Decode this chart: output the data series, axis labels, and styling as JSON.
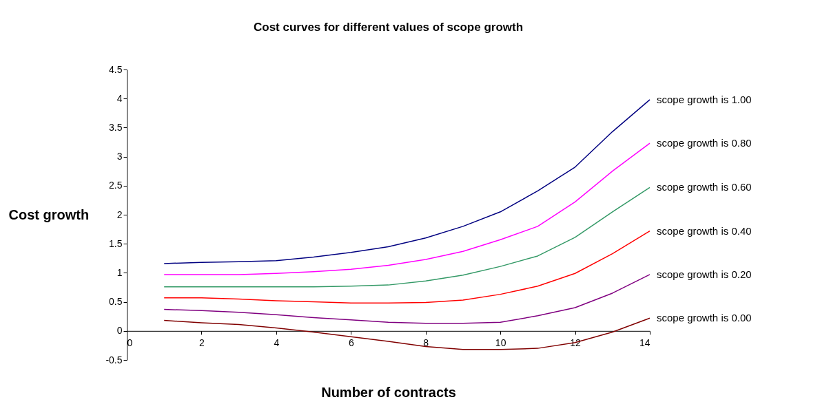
{
  "chart_data": {
    "type": "line",
    "title": "Cost curves for different values of scope growth",
    "xlabel": "Number of contracts",
    "ylabel": "Cost growth",
    "x": [
      1,
      2,
      3,
      4,
      5,
      6,
      7,
      8,
      9,
      10,
      11,
      12,
      13,
      14
    ],
    "xlim": [
      0,
      14
    ],
    "xticks": [
      0,
      2,
      4,
      6,
      8,
      10,
      12,
      14
    ],
    "ylim": [
      -0.5,
      4.5
    ],
    "yticks": [
      -0.5,
      0,
      0.5,
      1,
      1.5,
      2,
      2.5,
      3,
      3.5,
      4,
      4.5
    ],
    "grid": false,
    "legend": false,
    "marker": "none",
    "line_style": "solid",
    "series": [
      {
        "name": "scope growth is 1.00",
        "color": "#000080",
        "values": [
          1.16,
          1.18,
          1.19,
          1.21,
          1.27,
          1.35,
          1.45,
          1.6,
          1.8,
          2.05,
          2.41,
          2.82,
          3.43,
          3.98
        ]
      },
      {
        "name": "scope growth is 0.80",
        "color": "#ff00ff",
        "values": [
          0.97,
          0.97,
          0.97,
          0.99,
          1.02,
          1.06,
          1.13,
          1.23,
          1.37,
          1.57,
          1.8,
          2.22,
          2.75,
          3.23
        ]
      },
      {
        "name": "scope growth is 0.60",
        "color": "#339966",
        "values": [
          0.76,
          0.76,
          0.76,
          0.76,
          0.76,
          0.77,
          0.79,
          0.86,
          0.96,
          1.11,
          1.29,
          1.61,
          2.05,
          2.47
        ]
      },
      {
        "name": "scope growth is 0.40",
        "color": "#ff0000",
        "values": [
          0.57,
          0.57,
          0.55,
          0.52,
          0.5,
          0.48,
          0.48,
          0.49,
          0.53,
          0.63,
          0.77,
          0.99,
          1.33,
          1.72
        ]
      },
      {
        "name": "scope growth is 0.20",
        "color": "#800080",
        "values": [
          0.37,
          0.35,
          0.32,
          0.28,
          0.23,
          0.19,
          0.15,
          0.13,
          0.13,
          0.15,
          0.26,
          0.4,
          0.65,
          0.97
        ]
      },
      {
        "name": "scope growth is 0.00",
        "color": "#800000",
        "values": [
          0.18,
          0.14,
          0.11,
          0.05,
          -0.02,
          -0.1,
          -0.18,
          -0.27,
          -0.32,
          -0.32,
          -0.3,
          -0.2,
          -0.02,
          0.22
        ]
      }
    ]
  }
}
